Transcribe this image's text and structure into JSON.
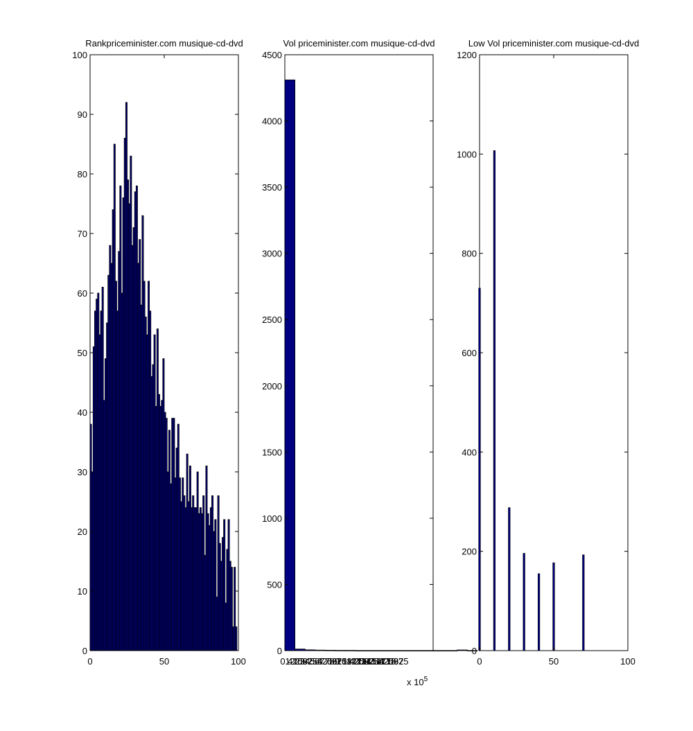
{
  "figure": {
    "background": "#ffffff",
    "bar_fill": "#000080",
    "bar_edge": "#000000"
  },
  "chart_data": [
    {
      "type": "bar",
      "title": "Rankpriceminister.com musique-cd-dvd",
      "xlabel": "",
      "ylabel": "",
      "xlim": [
        0,
        100
      ],
      "ylim": [
        0,
        100
      ],
      "xticks": [
        0,
        50,
        100
      ],
      "yticks": [
        0,
        10,
        20,
        30,
        40,
        50,
        60,
        70,
        80,
        90,
        100
      ],
      "grid": false,
      "x": [
        1,
        2,
        3,
        4,
        5,
        6,
        7,
        8,
        9,
        10,
        11,
        12,
        13,
        14,
        15,
        16,
        17,
        18,
        19,
        20,
        21,
        22,
        23,
        24,
        25,
        26,
        27,
        28,
        29,
        30,
        31,
        32,
        33,
        34,
        35,
        36,
        37,
        38,
        39,
        40,
        41,
        42,
        43,
        44,
        45,
        46,
        47,
        48,
        49,
        50,
        51,
        52,
        53,
        54,
        55,
        56,
        57,
        58,
        59,
        60,
        61,
        62,
        63,
        64,
        65,
        66,
        67,
        68,
        69,
        70,
        71,
        72,
        73,
        74,
        75,
        76,
        77,
        78,
        79,
        80,
        81,
        82,
        83,
        84,
        85,
        86,
        87,
        88,
        89,
        90,
        91,
        92,
        93,
        94,
        95,
        96,
        97,
        98,
        99,
        100
      ],
      "values": [
        38,
        30,
        51,
        57,
        59,
        60,
        53,
        57,
        61,
        42,
        49,
        55,
        63,
        68,
        65,
        74,
        85,
        62,
        57,
        67,
        78,
        60,
        76,
        86,
        92,
        79,
        75,
        83,
        68,
        71,
        77,
        78,
        65,
        69,
        58,
        73,
        62,
        56,
        53,
        62,
        57,
        46,
        48,
        53,
        41,
        54,
        43,
        41,
        42,
        49,
        40,
        39,
        30,
        37,
        28,
        39,
        39,
        29,
        34,
        38,
        29,
        25,
        29,
        26,
        24,
        33,
        25,
        31,
        24,
        26,
        24,
        24,
        30,
        23,
        24,
        23,
        26,
        16,
        31,
        23,
        21,
        24,
        26,
        20,
        22,
        9,
        26,
        18,
        15,
        19,
        22,
        8,
        17,
        22,
        15,
        14,
        4,
        14,
        4,
        0
      ]
    },
    {
      "type": "bar",
      "title": "Vol priceminister.com musique-cd-dvd",
      "xlabel": "",
      "ylabel": "",
      "x_exponent_label": "x 10",
      "x_exponent": "5",
      "xlim": [
        0,
        100
      ],
      "ylim": [
        0,
        4500
      ],
      "xtick_labels": [
        "0.41",
        "1.25",
        "2.08",
        "2.92",
        "3.75",
        "4.58",
        "5.42",
        "6.25",
        "7.08",
        "7.92",
        "8.75",
        "9.58",
        "10.42",
        "11.25",
        "12.08",
        "12.92",
        "13.75",
        "14.58",
        "15.42",
        "16.25",
        "17.08",
        "17.92",
        "18.75"
      ],
      "yticks": [
        0,
        500,
        1000,
        1500,
        2000,
        2500,
        3000,
        3500,
        4000,
        4500
      ],
      "grid": false,
      "categories": [
        "0.41",
        "1.25",
        "2.08",
        "2.92",
        "3.75",
        "4.58",
        "5.42",
        "6.25",
        "7.08",
        "7.92",
        "8.75",
        "9.58",
        "10.42",
        "11.25",
        "12.08",
        "12.92",
        "13.75",
        "14.58",
        "15.42",
        "16.25",
        "17.08",
        "17.92",
        "18.75"
      ],
      "values": [
        4310,
        12,
        6,
        4,
        3,
        2,
        2,
        1,
        1,
        1,
        1,
        1,
        1,
        1,
        1,
        1,
        1,
        5,
        1,
        0,
        0,
        0,
        0
      ]
    },
    {
      "type": "bar",
      "title": "Low Vol priceminister.com musique-cd-dvd",
      "xlabel": "",
      "ylabel": "",
      "xlim": [
        0,
        100
      ],
      "ylim": [
        0,
        1200
      ],
      "xticks": [
        0,
        50,
        100
      ],
      "yticks": [
        0,
        200,
        400,
        600,
        800,
        1000,
        1200
      ],
      "grid": false,
      "x": [
        0,
        10,
        20,
        30,
        40,
        50,
        70
      ],
      "values": [
        730,
        1007,
        288,
        196,
        155,
        177,
        193
      ]
    }
  ]
}
